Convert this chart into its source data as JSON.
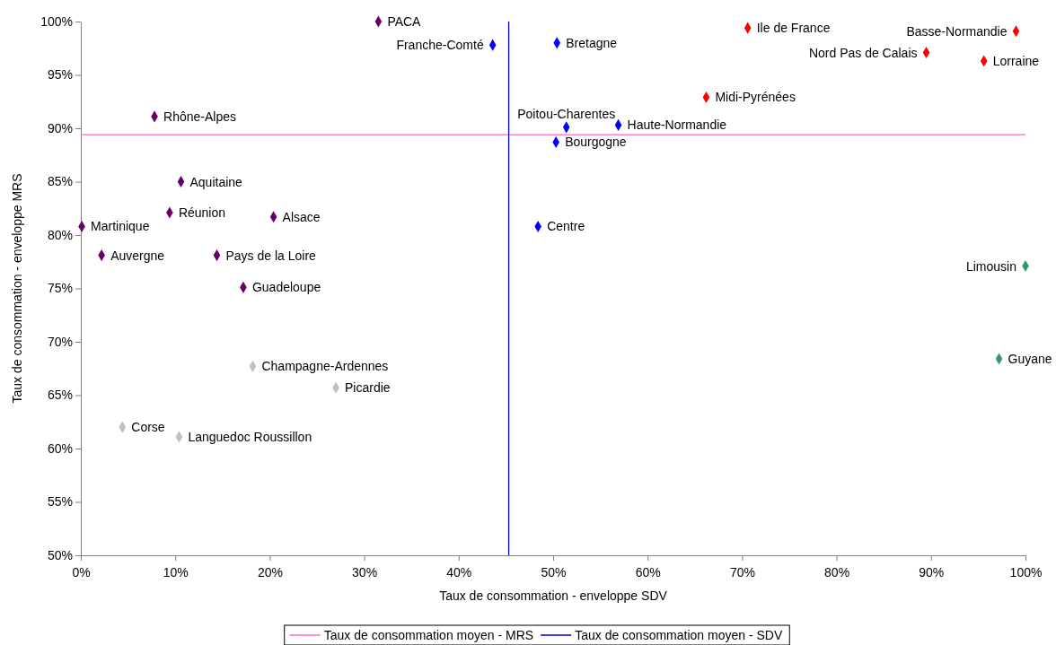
{
  "chart_data": {
    "type": "scatter",
    "xlabel": "Taux de consommation - enveloppe SDV",
    "ylabel": "Taux de consommation - enveloppe MRS",
    "xlim": [
      0,
      100
    ],
    "xticks": [
      {
        "value": 0,
        "label": "0%"
      },
      {
        "value": 10,
        "label": "10%"
      },
      {
        "value": 20,
        "label": "20%"
      },
      {
        "value": 30,
        "label": "30%"
      },
      {
        "value": 40,
        "label": "40%"
      },
      {
        "value": 50,
        "label": "50%"
      },
      {
        "value": 60,
        "label": "60%"
      },
      {
        "value": 70,
        "label": "70%"
      },
      {
        "value": 80,
        "label": "80%"
      },
      {
        "value": 90,
        "label": "90%"
      },
      {
        "value": 100,
        "label": "100%"
      }
    ],
    "ylim": [
      50,
      100
    ],
    "yticks": [
      {
        "value": 50,
        "label": "50%"
      },
      {
        "value": 55,
        "label": "55%"
      },
      {
        "value": 60,
        "label": "60%"
      },
      {
        "value": 65,
        "label": "65%"
      },
      {
        "value": 70,
        "label": "70%"
      },
      {
        "value": 75,
        "label": "75%"
      },
      {
        "value": 80,
        "label": "80%"
      },
      {
        "value": 85,
        "label": "85%"
      },
      {
        "value": 90,
        "label": "90%"
      },
      {
        "value": 95,
        "label": "95%"
      },
      {
        "value": 100,
        "label": "100%"
      }
    ],
    "marker": "diamond",
    "legend": "bottom",
    "series": [
      {
        "color": "#660066",
        "x": [
          31.5,
          7.8,
          10.6,
          9.4,
          20.4,
          0.1,
          2.2,
          14.4,
          17.2
        ],
        "values": [
          100,
          91.1,
          85.0,
          82.1,
          81.7,
          80.8,
          78.1,
          78.1,
          75.1
        ]
      },
      {
        "color": "#c0c0c0",
        "x": [
          18.2,
          27.0,
          4.4,
          10.4
        ],
        "values": [
          67.7,
          65.7,
          62.0,
          61.1
        ]
      },
      {
        "color": "#0000ff",
        "x": [
          43.6,
          50.4,
          51.4,
          56.9,
          50.3,
          48.4
        ],
        "values": [
          97.8,
          98.0,
          90.1,
          90.3,
          88.7,
          80.8
        ]
      },
      {
        "color": "#ff0000",
        "x": [
          70.6,
          99.0,
          89.5,
          95.6,
          66.2
        ],
        "values": [
          99.4,
          99.1,
          97.1,
          96.3,
          92.9
        ]
      },
      {
        "color": "#339966",
        "x": [
          100,
          97.2
        ],
        "values": [
          77.1,
          68.4
        ]
      }
    ],
    "ref_lines": [
      {
        "axis": "y",
        "value": 89.4,
        "label": "Taux de consommation moyen - MRS",
        "color": "#ff66cc"
      },
      {
        "axis": "x",
        "value": 45.3,
        "label": "Taux de consommation moyen - SDV",
        "color": "#0000cc"
      }
    ],
    "annotations": [
      {
        "text": "PACA",
        "x": 31.5,
        "y": 100
      },
      {
        "text": "Rhône-Alpes",
        "x": 7.8,
        "y": 91.1
      },
      {
        "text": "Aquitaine",
        "x": 10.6,
        "y": 85.0
      },
      {
        "text": "Réunion",
        "x": 9.4,
        "y": 82.1
      },
      {
        "text": "Alsace",
        "x": 20.4,
        "y": 81.7
      },
      {
        "text": "Martinique",
        "x": 0.1,
        "y": 80.8
      },
      {
        "text": "Auvergne",
        "x": 2.2,
        "y": 78.1
      },
      {
        "text": "Pays de la Loire",
        "x": 14.4,
        "y": 78.1
      },
      {
        "text": "Guadeloupe",
        "x": 17.2,
        "y": 75.1
      },
      {
        "text": "Champagne-Ardennes",
        "x": 18.2,
        "y": 67.7
      },
      {
        "text": "Picardie",
        "x": 27.0,
        "y": 65.7
      },
      {
        "text": "Corse",
        "x": 4.4,
        "y": 62.0
      },
      {
        "text": "Languedoc Roussillon",
        "x": 10.4,
        "y": 61.1
      },
      {
        "text": "Franche-Comté",
        "x": 43.6,
        "y": 97.8
      },
      {
        "text": "Bretagne",
        "x": 50.4,
        "y": 98.0
      },
      {
        "text": "Poitou-Charentes",
        "x": 51.4,
        "y": 90.1
      },
      {
        "text": "Haute-Normandie",
        "x": 56.9,
        "y": 90.3
      },
      {
        "text": "Bourgogne",
        "x": 50.3,
        "y": 88.7
      },
      {
        "text": "Centre",
        "x": 48.4,
        "y": 80.8
      },
      {
        "text": "Ile de France",
        "x": 70.6,
        "y": 99.4
      },
      {
        "text": "Basse-Normandie",
        "x": 99.0,
        "y": 99.1
      },
      {
        "text": "Nord Pas de Calais",
        "x": 89.5,
        "y": 97.1
      },
      {
        "text": "Lorraine",
        "x": 95.6,
        "y": 96.3
      },
      {
        "text": "Midi-Pyrénées",
        "x": 66.2,
        "y": 92.9
      },
      {
        "text": "Limousin",
        "x": 100,
        "y": 77.1
      },
      {
        "text": "Guyane",
        "x": 97.2,
        "y": 68.4
      }
    ]
  }
}
